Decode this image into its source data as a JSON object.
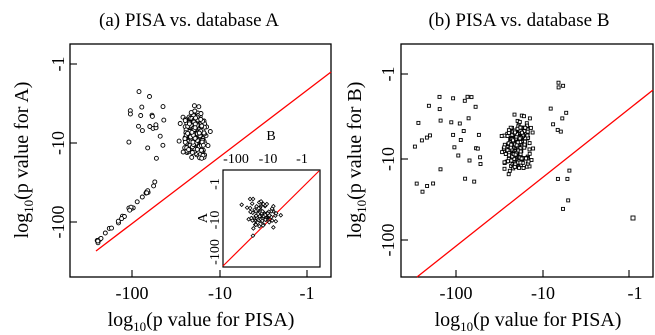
{
  "chart_data": [
    {
      "type": "scatter",
      "title": "(a) PISA vs. database A",
      "xlabel_base": "log",
      "xlabel_sub": "10",
      "xlabel_rest": "(p value for PISA)",
      "ylabel_base": "log",
      "ylabel_sub": "10",
      "ylabel_rest": "(p value for A)",
      "x_scale": "log10",
      "y_scale": "log10",
      "xlim": [
        -140,
        0
      ],
      "ylim": [
        -135,
        0
      ],
      "x_ticks": [
        "-100",
        "-10",
        "-1"
      ],
      "y_ticks": [
        "-1",
        "-10",
        "-100"
      ],
      "x_tick_values": [
        -100,
        -10,
        -1
      ],
      "y_tick_values": [
        -1,
        -10,
        -100
      ],
      "diagonal_color": "#ff0000",
      "marker": "open-circle",
      "grid": false,
      "inset": {
        "type": "scatter",
        "xlabel": "B",
        "ylabel": "A",
        "x_ticks": [
          "-100",
          "-10",
          "-1"
        ],
        "y_ticks": [
          "-1",
          "-10",
          "-100"
        ],
        "x_tick_values": [
          -100,
          -10,
          -1
        ],
        "y_tick_values": [
          -1,
          -10,
          -100
        ],
        "marker": "open-diamond",
        "diagonal_color": "#ff0000"
      }
    },
    {
      "type": "scatter",
      "title": "(b) PISA vs. database B",
      "xlabel_base": "log",
      "xlabel_sub": "10",
      "xlabel_rest": "(p value for PISA)",
      "ylabel_base": "log",
      "ylabel_sub": "10",
      "ylabel_rest": "(p value for B)",
      "x_scale": "log10",
      "y_scale": "log10",
      "xlim": [
        -140,
        0
      ],
      "ylim": [
        -135,
        0
      ],
      "x_ticks": [
        "-100",
        "-10",
        "-1"
      ],
      "y_ticks": [
        "-1",
        "-10",
        "-100"
      ],
      "x_tick_values": [
        -100,
        -10,
        -1
      ],
      "y_tick_values": [
        -1,
        -10,
        -100
      ],
      "diagonal_color": "#ff0000",
      "marker": "open-square",
      "grid": false
    }
  ]
}
